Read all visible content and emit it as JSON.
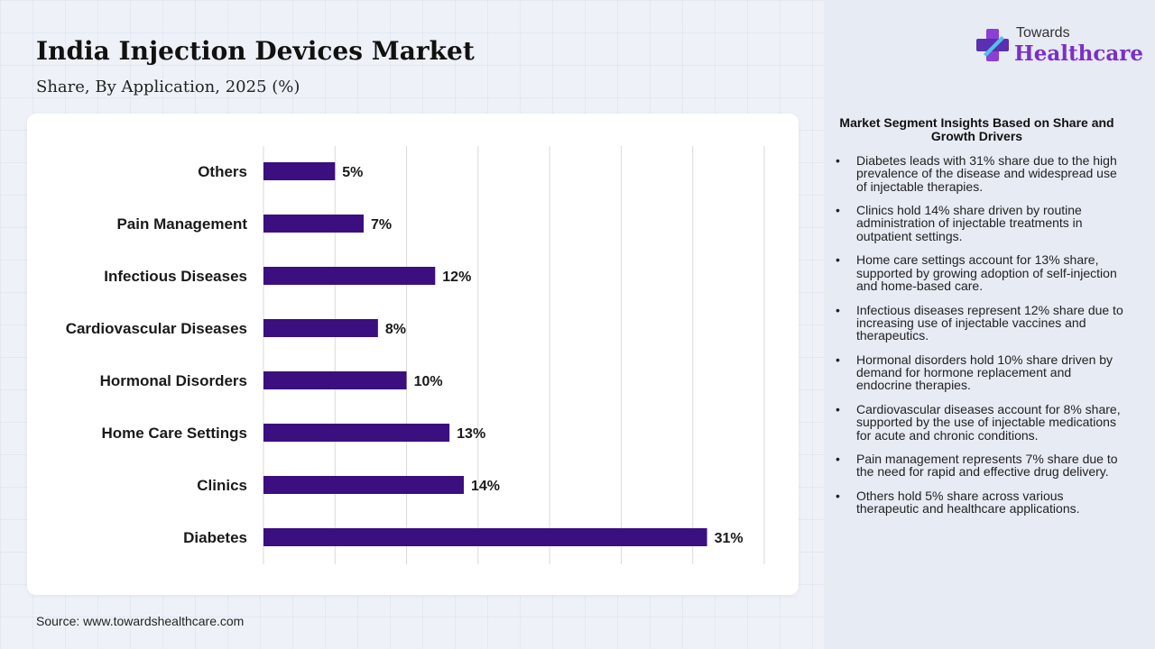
{
  "header": {
    "title": "India Injection Devices Market",
    "subtitle": "Share, By Application, 2025 (%)"
  },
  "source": "Source: www.towardshealthcare.com",
  "logo": {
    "line1": "Towards",
    "line2": "Healthcare",
    "accent": "#7b2fc9",
    "icon": "medical-cross-icon"
  },
  "insights": {
    "title": "Market Segment Insights Based on Share and Growth Drivers",
    "items": [
      "Diabetes leads with 31% share due to the high prevalence of the disease and widespread use of injectable therapies.",
      "Clinics hold 14% share driven by routine administration of injectable treatments in outpatient settings.",
      "Home care settings account for 13% share, supported by growing adoption of self-injection and home-based care.",
      "Infectious diseases represent 12% share due to increasing use of injectable vaccines and therapeutics.",
      "Hormonal disorders hold 10% share driven by demand for hormone replacement and endocrine therapies.",
      "Cardiovascular diseases account for 8% share, supported by the use of injectable medications for acute and chronic conditions.",
      "Pain management represents 7% share due to the need for rapid and effective drug delivery.",
      "Others hold 5% share across various therapeutic and healthcare applications."
    ]
  },
  "chart_data": {
    "type": "bar",
    "orientation": "horizontal",
    "categories": [
      "Others",
      "Pain Management",
      "Infectious Diseases",
      "Cardiovascular Diseases",
      "Hormonal Disorders",
      "Home Care Settings",
      "Clinics",
      "Diabetes"
    ],
    "values": [
      5,
      7,
      12,
      8,
      10,
      13,
      14,
      31
    ],
    "data_labels": [
      "5%",
      "7%",
      "12%",
      "8%",
      "10%",
      "13%",
      "14%",
      "31%"
    ],
    "xlim": [
      0,
      35
    ],
    "grid": true,
    "bar_color": "#3b0f80"
  }
}
